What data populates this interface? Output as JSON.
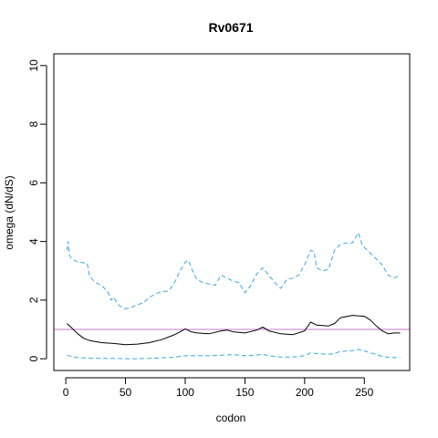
{
  "chart_data": {
    "type": "line",
    "title": "Rv0671",
    "xlabel": "codon",
    "ylabel": "omega (dN/dS)",
    "xlim": [
      -10,
      288
    ],
    "ylim": [
      -0.4,
      10.4
    ],
    "xticks": [
      0,
      50,
      100,
      150,
      200,
      250
    ],
    "yticks": [
      0,
      2,
      4,
      6,
      8,
      10
    ],
    "grid": false,
    "reference_line": {
      "y": 1,
      "color": "#c678c6"
    },
    "colors": {
      "omega": "#000000",
      "interval": "#3ba7e0"
    },
    "series": [
      {
        "style": "solid",
        "x": [
          1,
          5,
          10,
          15,
          20,
          30,
          40,
          50,
          60,
          70,
          80,
          90,
          95,
          100,
          105,
          110,
          120,
          130,
          135,
          140,
          150,
          160,
          165,
          170,
          180,
          190,
          200,
          205,
          210,
          220,
          225,
          230,
          240,
          250,
          255,
          260,
          265,
          270,
          275,
          280
        ],
        "y": [
          1.2,
          1.05,
          0.85,
          0.7,
          0.62,
          0.55,
          0.52,
          0.48,
          0.5,
          0.55,
          0.65,
          0.8,
          0.9,
          1.02,
          0.92,
          0.88,
          0.85,
          0.95,
          0.98,
          0.92,
          0.88,
          0.98,
          1.08,
          0.95,
          0.85,
          0.82,
          0.95,
          1.25,
          1.15,
          1.12,
          1.2,
          1.4,
          1.48,
          1.45,
          1.32,
          1.12,
          0.95,
          0.85,
          0.88,
          0.88
        ]
      },
      {
        "style": "dashed",
        "x": [
          1,
          2,
          3,
          5,
          10,
          18,
          20,
          25,
          30,
          35,
          38,
          40,
          45,
          50,
          55,
          60,
          65,
          70,
          75,
          80,
          85,
          90,
          95,
          100,
          103,
          105,
          108,
          110,
          115,
          120,
          125,
          130,
          135,
          140,
          145,
          150,
          155,
          160,
          165,
          170,
          175,
          180,
          185,
          190,
          195,
          200,
          205,
          208,
          210,
          215,
          220,
          225,
          230,
          235,
          240,
          245,
          248,
          250,
          255,
          260,
          265,
          270,
          275,
          280
        ],
        "y": [
          3.7,
          4.0,
          3.55,
          3.4,
          3.3,
          3.25,
          2.8,
          2.6,
          2.5,
          2.3,
          2.0,
          2.1,
          1.8,
          1.7,
          1.75,
          1.85,
          1.9,
          2.1,
          2.2,
          2.3,
          2.3,
          2.5,
          2.95,
          3.3,
          3.35,
          3.1,
          2.85,
          2.7,
          2.6,
          2.55,
          2.5,
          2.85,
          2.75,
          2.65,
          2.6,
          2.25,
          2.5,
          2.9,
          3.1,
          2.85,
          2.6,
          2.4,
          2.7,
          2.75,
          2.85,
          3.2,
          3.7,
          3.65,
          3.1,
          3.0,
          3.05,
          3.7,
          3.9,
          3.95,
          3.95,
          4.3,
          3.9,
          3.8,
          3.6,
          3.4,
          3.2,
          2.85,
          2.75,
          2.85
        ]
      },
      {
        "style": "dashed",
        "x": [
          1,
          5,
          10,
          20,
          30,
          40,
          50,
          60,
          70,
          80,
          90,
          100,
          110,
          120,
          130,
          140,
          150,
          160,
          165,
          170,
          180,
          190,
          200,
          205,
          210,
          220,
          225,
          230,
          240,
          245,
          250,
          255,
          260,
          265,
          270,
          275,
          280
        ],
        "y": [
          0.12,
          0.08,
          0.04,
          0.02,
          0.01,
          0.01,
          0.0,
          0.0,
          0.01,
          0.03,
          0.05,
          0.1,
          0.1,
          0.1,
          0.12,
          0.14,
          0.1,
          0.13,
          0.15,
          0.1,
          0.06,
          0.06,
          0.1,
          0.2,
          0.18,
          0.15,
          0.18,
          0.25,
          0.28,
          0.32,
          0.27,
          0.2,
          0.15,
          0.08,
          0.05,
          0.04,
          0.05
        ]
      }
    ]
  }
}
